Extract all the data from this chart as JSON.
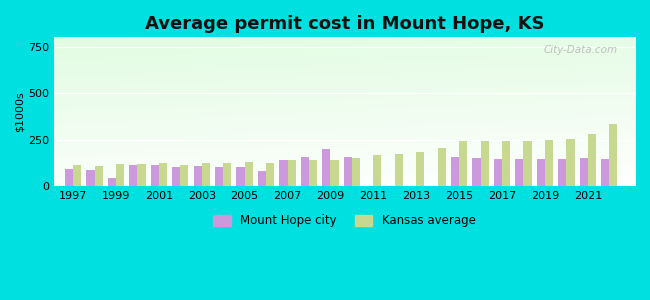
{
  "title": "Average permit cost in Mount Hope, KS",
  "ylabel": "$1000s",
  "ylim": [
    0,
    800
  ],
  "yticks": [
    0,
    250,
    500,
    750
  ],
  "bg_outer": "#00e0e0",
  "city_color": "#cc99dd",
  "ks_color": "#c8d890",
  "years": [
    1997,
    1998,
    1999,
    2000,
    2001,
    2002,
    2003,
    2004,
    2005,
    2006,
    2007,
    2008,
    2009,
    2010,
    2011,
    2012,
    2013,
    2014,
    2015,
    2016,
    2017,
    2018,
    2019,
    2020,
    2021,
    2022
  ],
  "city_values": [
    90,
    85,
    45,
    115,
    115,
    100,
    110,
    105,
    105,
    80,
    140,
    155,
    200,
    155,
    0,
    0,
    0,
    0,
    155,
    150,
    145,
    145,
    145,
    145,
    150,
    145
  ],
  "ks_values": [
    115,
    110,
    120,
    120,
    125,
    115,
    125,
    125,
    130,
    125,
    140,
    140,
    140,
    150,
    165,
    175,
    185,
    205,
    245,
    245,
    245,
    240,
    250,
    255,
    280,
    335
  ],
  "xtick_years": [
    1997,
    1999,
    2001,
    2003,
    2005,
    2007,
    2009,
    2011,
    2013,
    2015,
    2017,
    2019,
    2021
  ],
  "xlim": [
    1996.1,
    2023.2
  ],
  "bar_width": 0.38,
  "legend_city": "Mount Hope city",
  "legend_ks": "Kansas average",
  "watermark": "City-Data.com",
  "grid_color": "#ffffff",
  "title_fontsize": 13,
  "tick_fontsize": 8,
  "ylabel_fontsize": 8
}
